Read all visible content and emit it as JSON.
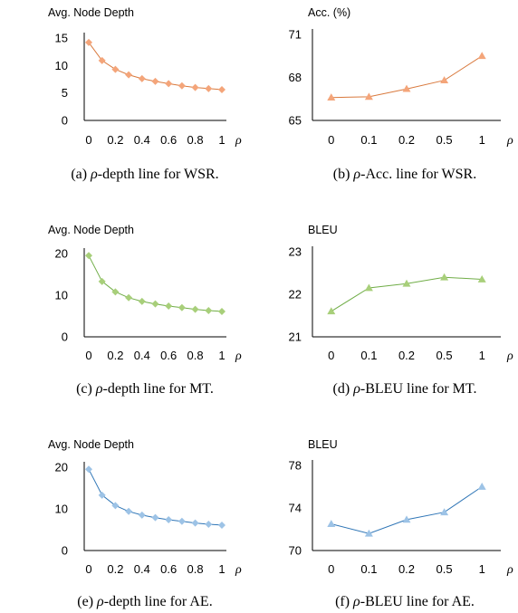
{
  "chart_data": [
    {
      "id": "a",
      "type": "line",
      "ylabel": "Avg. Node Depth",
      "x_axis_symbol": "ρ",
      "x": [
        0,
        0.1,
        0.2,
        0.3,
        0.4,
        0.5,
        0.6,
        0.7,
        0.8,
        0.9,
        1
      ],
      "xticks": [
        "0",
        "0.2",
        "0.4",
        "0.6",
        "0.8",
        "1"
      ],
      "ylim": [
        0,
        15
      ],
      "yticks": [
        "0",
        "5",
        "10",
        "15"
      ],
      "series": [
        {
          "color": "#F4A57A",
          "marker": "diamond",
          "values": [
            14.2,
            10.9,
            9.3,
            8.3,
            7.6,
            7.1,
            6.7,
            6.3,
            6.0,
            5.8,
            5.6
          ]
        }
      ],
      "caption": {
        "prefix": "(a) ",
        "symbol": "ρ",
        "text": "-depth line for WSR."
      }
    },
    {
      "id": "b",
      "type": "line",
      "ylabel": "Acc. (%)",
      "x_axis_symbol": "ρ",
      "categories": [
        "0",
        "0.1",
        "0.2",
        "0.5",
        "1"
      ],
      "ylim": [
        65,
        71
      ],
      "yticks": [
        "65",
        "68",
        "71"
      ],
      "series": [
        {
          "color": "#F4A57A",
          "marker": "triangle",
          "values": [
            66.6,
            66.65,
            67.2,
            67.8,
            69.5
          ]
        }
      ],
      "caption": {
        "prefix": "(b) ",
        "symbol": "ρ",
        "text": "-Acc. line for WSR."
      }
    },
    {
      "id": "c",
      "type": "line",
      "ylabel": "Avg. Node Depth",
      "x_axis_symbol": "ρ",
      "x": [
        0,
        0.1,
        0.2,
        0.3,
        0.4,
        0.5,
        0.6,
        0.7,
        0.8,
        0.9,
        1
      ],
      "xticks": [
        "0",
        "0.2",
        "0.4",
        "0.6",
        "0.8",
        "1"
      ],
      "ylim": [
        0,
        20
      ],
      "yticks": [
        "0",
        "10",
        "20"
      ],
      "series": [
        {
          "color": "#A8CF7A",
          "marker": "diamond",
          "values": [
            19.5,
            13.3,
            10.8,
            9.4,
            8.5,
            7.9,
            7.4,
            7.0,
            6.6,
            6.3,
            6.1
          ]
        }
      ],
      "caption": {
        "prefix": "(c) ",
        "symbol": "ρ",
        "text": "-depth line for MT."
      }
    },
    {
      "id": "d",
      "type": "line",
      "ylabel": "BLEU",
      "x_axis_symbol": "ρ",
      "categories": [
        "0",
        "0.1",
        "0.2",
        "0.5",
        "1"
      ],
      "ylim": [
        21,
        23
      ],
      "yticks": [
        "21",
        "22",
        "23"
      ],
      "series": [
        {
          "color": "#A8CF7A",
          "marker": "triangle",
          "values": [
            21.6,
            22.15,
            22.25,
            22.4,
            22.35
          ]
        }
      ],
      "caption": {
        "prefix": "(d) ",
        "symbol": "ρ",
        "text": "-BLEU line for MT."
      }
    },
    {
      "id": "e",
      "type": "line",
      "ylabel": "Avg. Node Depth",
      "x_axis_symbol": "ρ",
      "x": [
        0,
        0.1,
        0.2,
        0.3,
        0.4,
        0.5,
        0.6,
        0.7,
        0.8,
        0.9,
        1
      ],
      "xticks": [
        "0",
        "0.2",
        "0.4",
        "0.6",
        "0.8",
        "1"
      ],
      "ylim": [
        0,
        20
      ],
      "yticks": [
        "0",
        "10",
        "20"
      ],
      "series": [
        {
          "color": "#9DC3E6",
          "marker": "diamond",
          "values": [
            19.5,
            13.3,
            10.8,
            9.4,
            8.5,
            7.9,
            7.4,
            7.0,
            6.6,
            6.3,
            6.1
          ]
        }
      ],
      "caption": {
        "prefix": "(e) ",
        "symbol": "ρ",
        "text": "-depth line for AE."
      }
    },
    {
      "id": "f",
      "type": "line",
      "ylabel": "BLEU",
      "x_axis_symbol": "ρ",
      "categories": [
        "0",
        "0.1",
        "0.2",
        "0.5",
        "1"
      ],
      "ylim": [
        70,
        78
      ],
      "yticks": [
        "70",
        "74",
        "78"
      ],
      "series": [
        {
          "color": "#9DC3E6",
          "marker": "triangle",
          "values": [
            72.5,
            71.6,
            72.9,
            73.6,
            76.0
          ]
        }
      ],
      "caption": {
        "prefix": "(f) ",
        "symbol": "ρ",
        "text": "-BLEU line for AE."
      }
    }
  ]
}
